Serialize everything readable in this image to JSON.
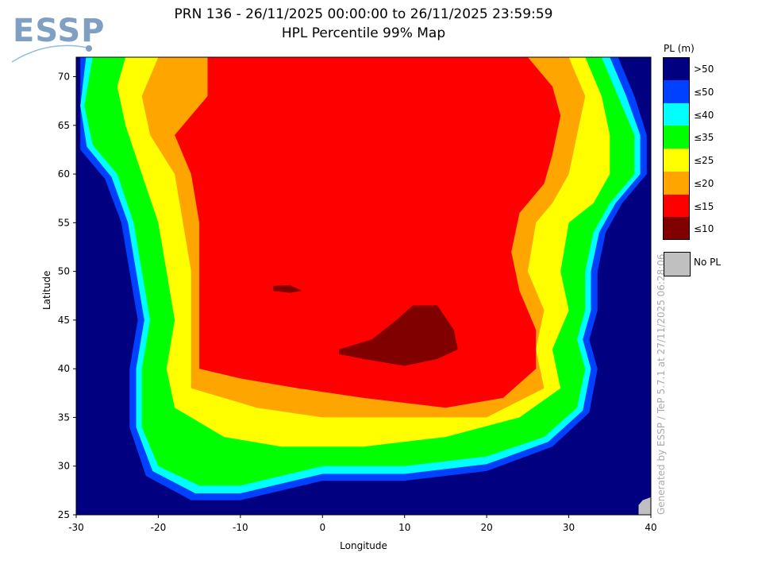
{
  "logo": "ESSP",
  "title_line1": "PRN 136 - 26/11/2025 00:00:00 to 26/11/2025 23:59:59",
  "title_line2": "HPL Percentile 99% Map",
  "credit": "Generated by ESSP / TeP 5.7.1 at 27/11/2025 06:28:06",
  "chart_data": {
    "type": "heatmap",
    "title": "HPL Percentile 99% Map",
    "xlabel": "Longitude",
    "ylabel": "Latitude",
    "xlim": [
      -30,
      40
    ],
    "ylim": [
      25,
      72
    ],
    "xticks": [
      -30,
      -20,
      -10,
      0,
      10,
      20,
      30,
      40
    ],
    "yticks": [
      25,
      30,
      35,
      40,
      45,
      50,
      55,
      60,
      65,
      70
    ],
    "legend": {
      "title": "PL (m)",
      "position": "right",
      "entries": [
        {
          "label": ">50",
          "color": "#000080"
        },
        {
          "label": "≤50",
          "color": "#0040ff"
        },
        {
          "label": "≤40",
          "color": "#00ffff"
        },
        {
          "label": "≤35",
          "color": "#00ff00"
        },
        {
          "label": "≤25",
          "color": "#ffff00"
        },
        {
          "label": "≤20",
          "color": "#ffa500"
        },
        {
          "label": "≤15",
          "color": "#ff0000"
        },
        {
          "label": "≤10",
          "color": "#800000"
        }
      ],
      "no_pl": {
        "label": "No PL",
        "color": "#c0c0c0"
      }
    },
    "regions": [
      {
        "level": "≤50",
        "color": "#0040ff",
        "lonlat": [
          [
            -29.5,
            72
          ],
          [
            36,
            72
          ],
          [
            38,
            68
          ],
          [
            39.5,
            64
          ],
          [
            39.5,
            60
          ],
          [
            36.5,
            57
          ],
          [
            34.5,
            54
          ],
          [
            33.5,
            50
          ],
          [
            33.5,
            46
          ],
          [
            32.5,
            43
          ],
          [
            33.5,
            40
          ],
          [
            32.5,
            35.5
          ],
          [
            28,
            32
          ],
          [
            20,
            29.5
          ],
          [
            10,
            28.5
          ],
          [
            0,
            28.5
          ],
          [
            -10,
            26.5
          ],
          [
            -16,
            26.5
          ],
          [
            -21.5,
            29
          ],
          [
            -23.5,
            34
          ],
          [
            -23.5,
            40
          ],
          [
            -22.5,
            45
          ],
          [
            -23.5,
            50
          ],
          [
            -24.5,
            55
          ],
          [
            -26.5,
            59.5
          ],
          [
            -29.5,
            62.5
          ]
        ]
      },
      {
        "level": "≤40",
        "color": "#00ffff",
        "lonlat": [
          [
            -28.8,
            72
          ],
          [
            35,
            72
          ],
          [
            37,
            68
          ],
          [
            38.7,
            64
          ],
          [
            38.7,
            60
          ],
          [
            35.7,
            57
          ],
          [
            33.7,
            54
          ],
          [
            32.7,
            50
          ],
          [
            32.7,
            46
          ],
          [
            31.7,
            43
          ],
          [
            32.7,
            40
          ],
          [
            31.7,
            35.7
          ],
          [
            27.5,
            32.5
          ],
          [
            20,
            30.2
          ],
          [
            10,
            29.2
          ],
          [
            0,
            29.2
          ],
          [
            -10,
            27.2
          ],
          [
            -15.5,
            27.2
          ],
          [
            -20.7,
            29.5
          ],
          [
            -22.7,
            34
          ],
          [
            -22.7,
            40
          ],
          [
            -21.7,
            45
          ],
          [
            -22.7,
            50
          ],
          [
            -23.7,
            55
          ],
          [
            -25.7,
            59.7
          ],
          [
            -28.7,
            62.8
          ],
          [
            -29.5,
            67
          ]
        ]
      },
      {
        "level": "≤35",
        "color": "#00ff00",
        "lonlat": [
          [
            -28,
            72
          ],
          [
            34,
            72
          ],
          [
            36,
            68
          ],
          [
            38,
            64
          ],
          [
            38,
            60
          ],
          [
            35,
            57
          ],
          [
            33,
            54
          ],
          [
            32,
            50
          ],
          [
            32,
            46
          ],
          [
            31,
            43
          ],
          [
            32,
            40
          ],
          [
            31,
            36
          ],
          [
            27,
            33
          ],
          [
            20,
            31
          ],
          [
            10,
            30
          ],
          [
            0,
            30
          ],
          [
            -10,
            28
          ],
          [
            -15,
            28
          ],
          [
            -20,
            30
          ],
          [
            -22,
            34
          ],
          [
            -22,
            40
          ],
          [
            -21,
            45
          ],
          [
            -22,
            50
          ],
          [
            -23,
            55
          ],
          [
            -25,
            60
          ],
          [
            -28,
            63
          ],
          [
            -29,
            67
          ]
        ]
      },
      {
        "level": "≤25",
        "color": "#ffff00",
        "lonlat": [
          [
            -24,
            72
          ],
          [
            32,
            72
          ],
          [
            34,
            68
          ],
          [
            35,
            64
          ],
          [
            35,
            60
          ],
          [
            33,
            57
          ],
          [
            30,
            55
          ],
          [
            29,
            50
          ],
          [
            30,
            46
          ],
          [
            28,
            42
          ],
          [
            29,
            38
          ],
          [
            24,
            35
          ],
          [
            15,
            33
          ],
          [
            5,
            32
          ],
          [
            -5,
            32
          ],
          [
            -12,
            33
          ],
          [
            -18,
            36
          ],
          [
            -19,
            40
          ],
          [
            -18,
            45
          ],
          [
            -19,
            50
          ],
          [
            -20,
            55
          ],
          [
            -22,
            60
          ],
          [
            -24,
            65
          ],
          [
            -25,
            69
          ]
        ]
      },
      {
        "level": "≤20",
        "color": "#ffa500",
        "lonlat": [
          [
            -20,
            72
          ],
          [
            30,
            72
          ],
          [
            32,
            68
          ],
          [
            31,
            64
          ],
          [
            30,
            60
          ],
          [
            28,
            57
          ],
          [
            26,
            55
          ],
          [
            25,
            50
          ],
          [
            27,
            46
          ],
          [
            26,
            42
          ],
          [
            27,
            38
          ],
          [
            20,
            35
          ],
          [
            10,
            35
          ],
          [
            0,
            35
          ],
          [
            -8,
            36
          ],
          [
            -16,
            38
          ],
          [
            -16,
            42
          ],
          [
            -16,
            46
          ],
          [
            -16,
            50
          ],
          [
            -17,
            55
          ],
          [
            -18,
            60
          ],
          [
            -21,
            64
          ],
          [
            -22,
            68
          ]
        ]
      },
      {
        "level": "≤15",
        "color": "#ff0000",
        "lonlat": [
          [
            -14,
            72
          ],
          [
            25,
            72
          ],
          [
            28,
            69
          ],
          [
            29,
            66
          ],
          [
            28,
            62
          ],
          [
            27,
            59
          ],
          [
            24,
            56
          ],
          [
            23,
            52
          ],
          [
            24,
            48
          ],
          [
            26,
            44
          ],
          [
            26,
            40
          ],
          [
            22,
            37
          ],
          [
            15,
            36
          ],
          [
            5,
            37
          ],
          [
            -3,
            38
          ],
          [
            -10,
            39
          ],
          [
            -15,
            40
          ],
          [
            -15,
            45
          ],
          [
            -15,
            50
          ],
          [
            -15,
            55
          ],
          [
            -16,
            60
          ],
          [
            -18,
            64
          ],
          [
            -16,
            66
          ],
          [
            -14,
            68
          ]
        ]
      },
      {
        "level": "≤10",
        "color": "#800000",
        "lonlat": [
          [
            2,
            42
          ],
          [
            6,
            43
          ],
          [
            9,
            45
          ],
          [
            11,
            46.5
          ],
          [
            14,
            46.5
          ],
          [
            16,
            44
          ],
          [
            16.5,
            42
          ],
          [
            14,
            41
          ],
          [
            10,
            40.3
          ],
          [
            5,
            41
          ],
          [
            2,
            41.5
          ]
        ]
      },
      {
        "level": "≤10",
        "color": "#800000",
        "lonlat": [
          [
            -6,
            48.5
          ],
          [
            -4,
            48.6
          ],
          [
            -2.5,
            48
          ],
          [
            -4,
            47.8
          ],
          [
            -6,
            48
          ]
        ]
      },
      {
        "level": "No PL",
        "color": "#c0c0c0",
        "lonlat": [
          [
            38.5,
            25
          ],
          [
            40,
            25
          ],
          [
            40,
            26.8
          ],
          [
            39,
            26.5
          ],
          [
            38.5,
            26
          ]
        ]
      }
    ]
  }
}
